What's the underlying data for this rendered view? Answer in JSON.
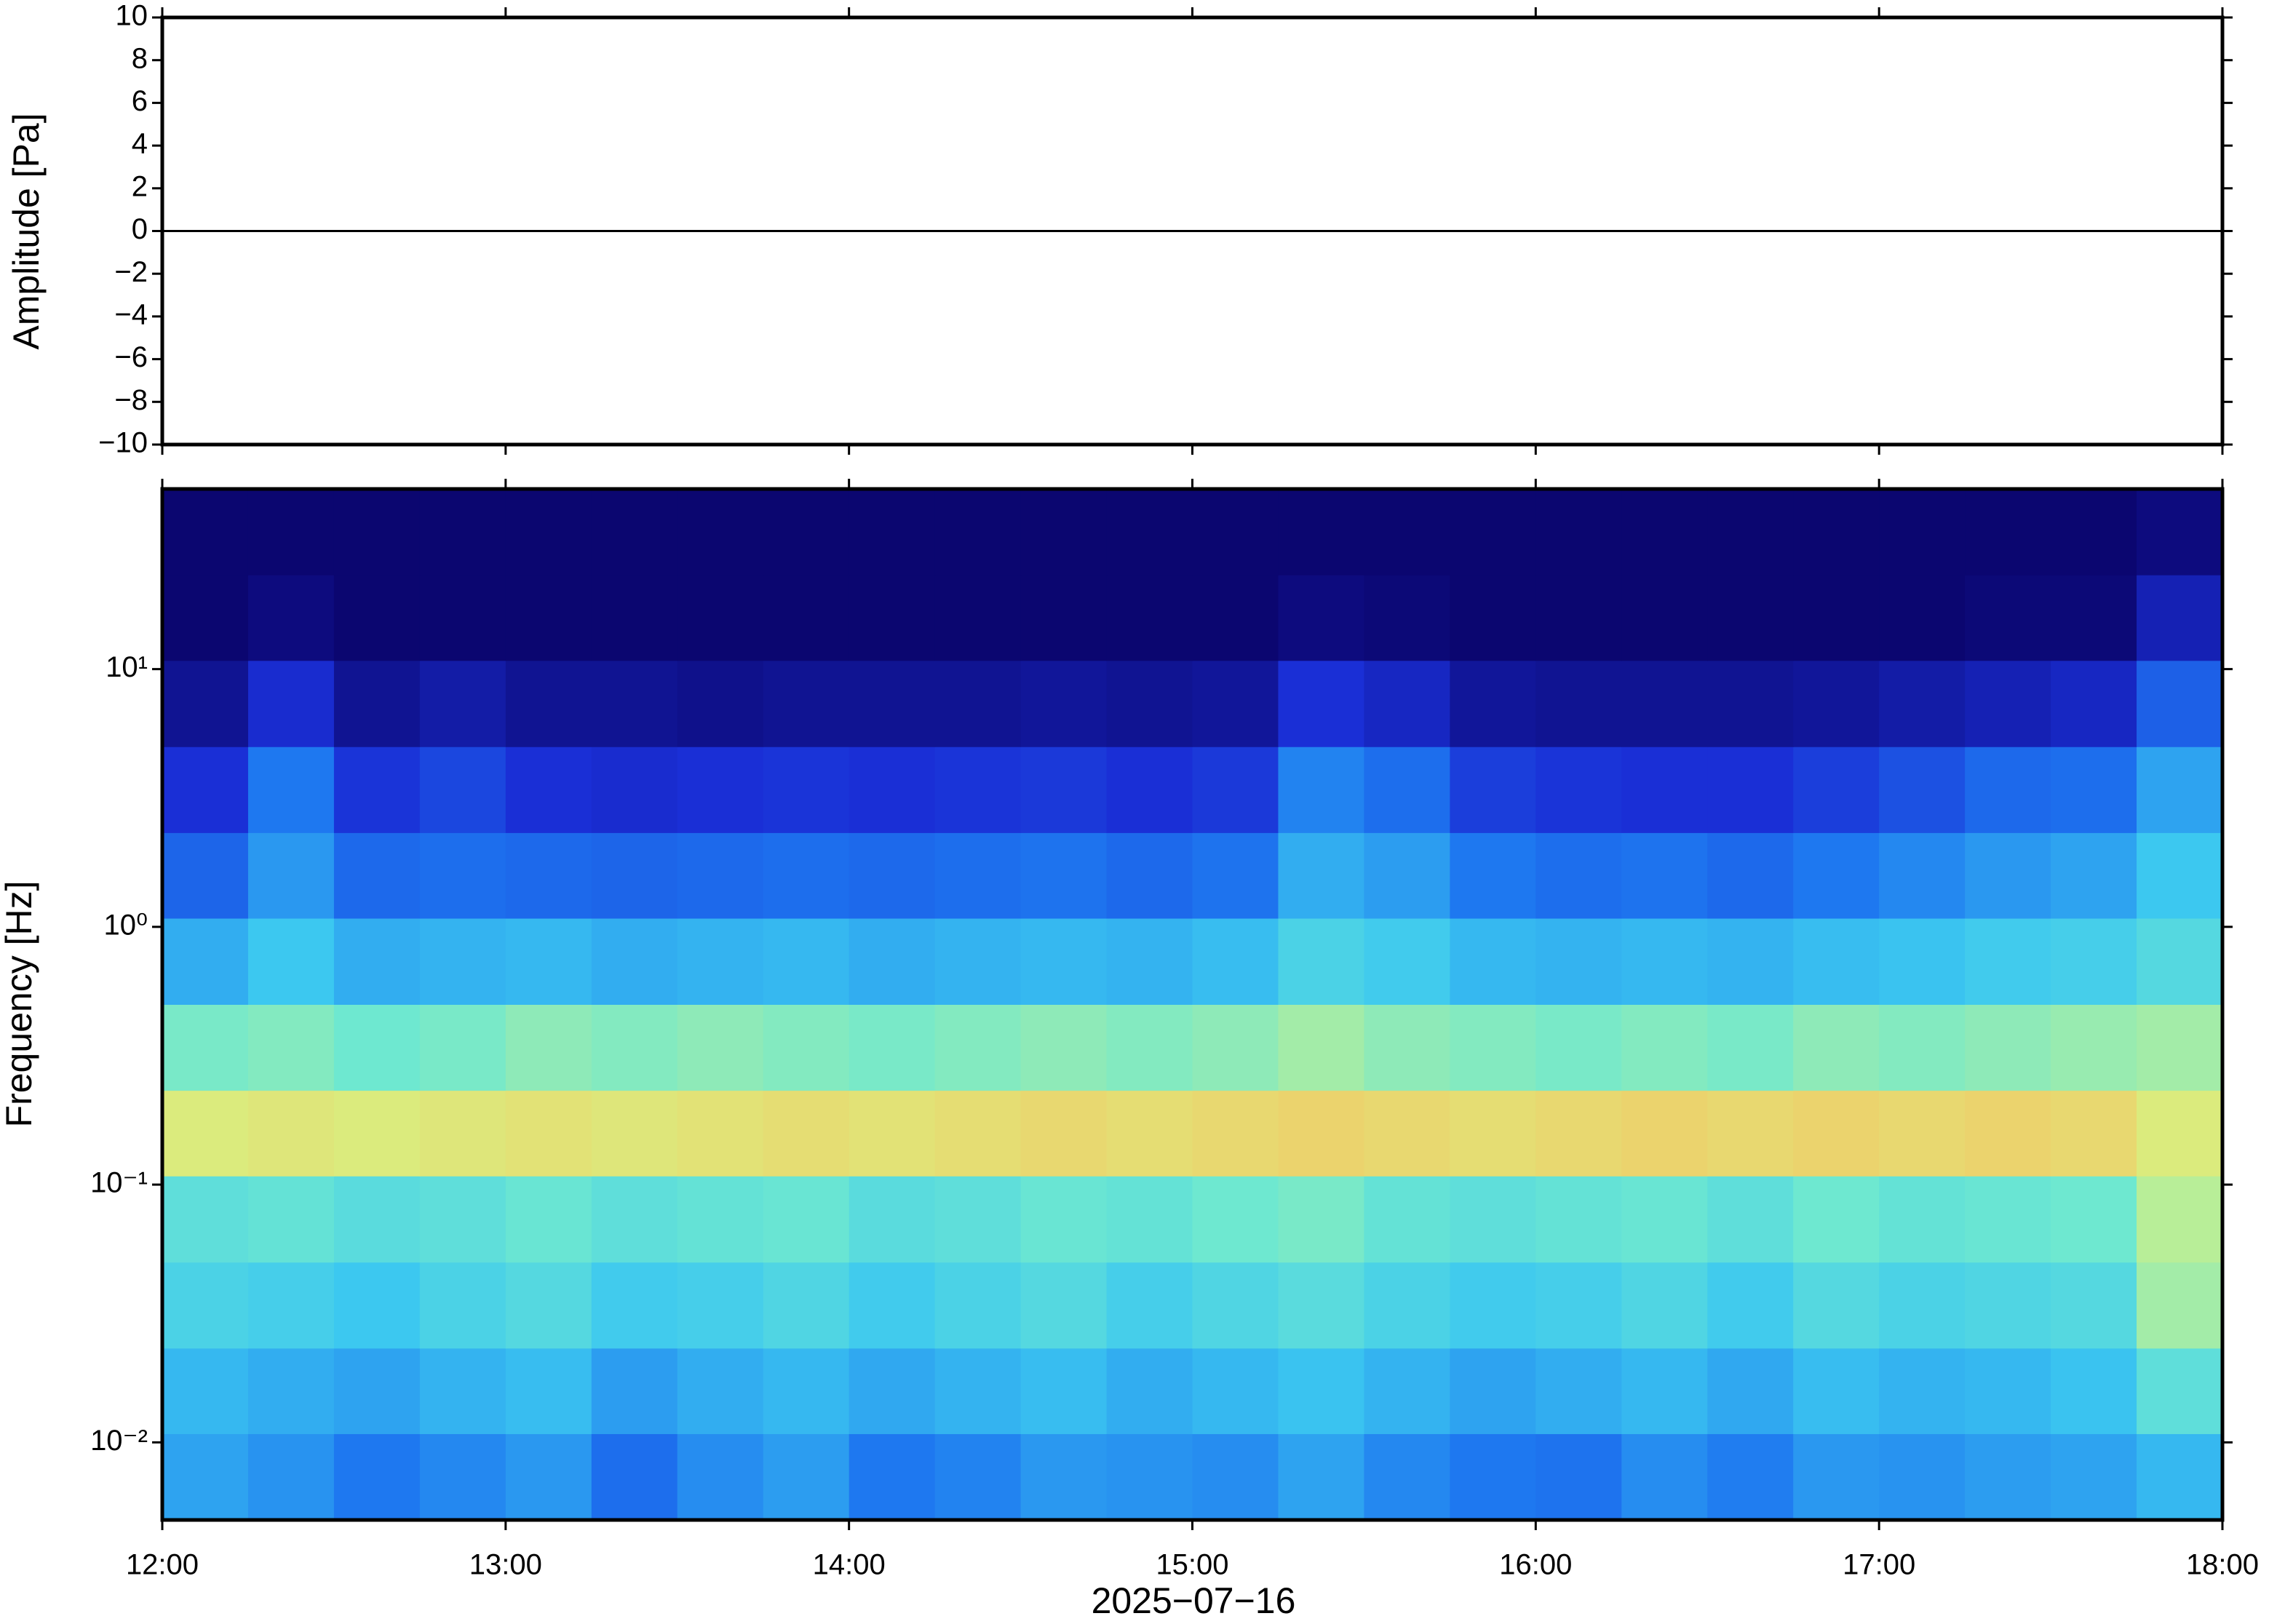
{
  "chart_data": [
    {
      "type": "line",
      "y_label": "Amplitude [Pa]",
      "xlim": [
        12,
        18
      ],
      "xticks": [
        12,
        13,
        14,
        15,
        16,
        17,
        18
      ],
      "ylim": [
        -10,
        10
      ],
      "yticks": [
        {
          "value": -10,
          "label": "−10"
        },
        {
          "value": -8,
          "label": "−8"
        },
        {
          "value": -6,
          "label": "−6"
        },
        {
          "value": -4,
          "label": "−4"
        },
        {
          "value": -2,
          "label": "−2"
        },
        0,
        2,
        4,
        6,
        8,
        10
      ],
      "series": [
        {
          "color": "#000000",
          "x": [
            12,
            12.25,
            12.5,
            12.75,
            13,
            13.25,
            13.5,
            13.75,
            14,
            14.25,
            14.5,
            14.75,
            15,
            15.25,
            15.5,
            15.75,
            16,
            16.25,
            16.5,
            16.75,
            17,
            17.25,
            17.5,
            17.75,
            18
          ],
          "values": [
            0,
            0,
            0,
            0,
            0,
            0,
            0,
            0,
            0,
            0,
            0,
            0,
            0,
            0,
            0,
            0,
            0,
            0,
            0,
            0,
            0,
            0,
            0,
            0,
            0
          ]
        }
      ]
    },
    {
      "type": "heatmap",
      "y_label": "Frequency [Hz]",
      "x_label": "2025−07−16",
      "xlim": [
        12,
        18
      ],
      "xticks": [
        {
          "value": 12,
          "label": "12:00"
        },
        {
          "value": 13,
          "label": "13:00"
        },
        {
          "value": 14,
          "label": "14:00"
        },
        {
          "value": 15,
          "label": "15:00"
        },
        {
          "value": 16,
          "label": "16:00"
        },
        {
          "value": 17,
          "label": "17:00"
        },
        {
          "value": 18,
          "label": "18:00"
        }
      ],
      "log_y": true,
      "ylim": [
        0.005,
        50
      ],
      "yticks": [
        {
          "value": 0.01,
          "label": "10⁻²"
        },
        {
          "value": 0.1,
          "label": "10⁻¹"
        },
        {
          "value": 1,
          "label": "10⁰"
        },
        {
          "value": 10,
          "label": "10¹"
        }
      ],
      "colorscale": [
        [
          0,
          "#0b0670"
        ],
        [
          0.15,
          "#1a2fd6"
        ],
        [
          0.3,
          "#1e78f0"
        ],
        [
          0.45,
          "#3cc8f0"
        ],
        [
          0.55,
          "#6ee8d0"
        ],
        [
          0.65,
          "#d8f080"
        ],
        [
          0.75,
          "#f8c060"
        ],
        [
          1,
          "#e04020"
        ]
      ],
      "x": [
        12,
        12.25,
        12.5,
        12.75,
        13,
        13.25,
        13.5,
        13.75,
        14,
        14.25,
        14.5,
        14.75,
        15,
        15.25,
        15.5,
        15.75,
        16,
        16.25,
        16.5,
        16.75,
        17,
        17.25,
        17.5,
        17.75
      ],
      "y": [
        0.005,
        0.0108,
        0.0232,
        0.05,
        0.108,
        0.232,
        0.5,
        1.08,
        2.32,
        5,
        10.8,
        23.2
      ],
      "z": [
        [
          0.38,
          0.35,
          0.3,
          0.33,
          0.36,
          0.28,
          0.34,
          0.37,
          0.3,
          0.32,
          0.36,
          0.35,
          0.34,
          0.38,
          0.33,
          0.3,
          0.29,
          0.34,
          0.31,
          0.36,
          0.35,
          0.37,
          0.38,
          0.42
        ],
        [
          0.42,
          0.4,
          0.38,
          0.41,
          0.43,
          0.37,
          0.4,
          0.42,
          0.39,
          0.41,
          0.43,
          0.4,
          0.42,
          0.44,
          0.41,
          0.38,
          0.4,
          0.42,
          0.39,
          0.43,
          0.41,
          0.42,
          0.44,
          0.52
        ],
        [
          0.48,
          0.47,
          0.45,
          0.48,
          0.5,
          0.46,
          0.47,
          0.49,
          0.46,
          0.48,
          0.5,
          0.47,
          0.49,
          0.51,
          0.48,
          0.46,
          0.47,
          0.49,
          0.46,
          0.5,
          0.48,
          0.49,
          0.5,
          0.6
        ],
        [
          0.52,
          0.53,
          0.51,
          0.52,
          0.54,
          0.52,
          0.53,
          0.54,
          0.51,
          0.52,
          0.54,
          0.53,
          0.55,
          0.56,
          0.53,
          0.52,
          0.53,
          0.54,
          0.52,
          0.55,
          0.53,
          0.54,
          0.55,
          0.62
        ],
        [
          0.66,
          0.67,
          0.66,
          0.67,
          0.68,
          0.67,
          0.68,
          0.69,
          0.68,
          0.69,
          0.7,
          0.69,
          0.7,
          0.71,
          0.7,
          0.69,
          0.7,
          0.71,
          0.7,
          0.71,
          0.7,
          0.71,
          0.7,
          0.66
        ],
        [
          0.56,
          0.57,
          0.55,
          0.56,
          0.58,
          0.57,
          0.58,
          0.57,
          0.56,
          0.57,
          0.58,
          0.57,
          0.58,
          0.6,
          0.58,
          0.57,
          0.56,
          0.57,
          0.56,
          0.58,
          0.57,
          0.58,
          0.59,
          0.6
        ],
        [
          0.4,
          0.45,
          0.4,
          0.41,
          0.42,
          0.4,
          0.41,
          0.42,
          0.4,
          0.41,
          0.42,
          0.41,
          0.43,
          0.48,
          0.46,
          0.42,
          0.41,
          0.42,
          0.41,
          0.43,
          0.44,
          0.46,
          0.47,
          0.5
        ],
        [
          0.26,
          0.36,
          0.27,
          0.28,
          0.27,
          0.26,
          0.27,
          0.28,
          0.27,
          0.28,
          0.29,
          0.27,
          0.29,
          0.4,
          0.37,
          0.3,
          0.28,
          0.29,
          0.27,
          0.3,
          0.33,
          0.36,
          0.38,
          0.45
        ],
        [
          0.15,
          0.3,
          0.16,
          0.2,
          0.15,
          0.14,
          0.15,
          0.16,
          0.15,
          0.16,
          0.17,
          0.15,
          0.17,
          0.32,
          0.28,
          0.18,
          0.16,
          0.15,
          0.15,
          0.18,
          0.22,
          0.27,
          0.28,
          0.38
        ],
        [
          0.05,
          0.14,
          0.05,
          0.08,
          0.05,
          0.05,
          0.04,
          0.05,
          0.05,
          0.05,
          0.06,
          0.05,
          0.06,
          0.15,
          0.12,
          0.06,
          0.05,
          0.05,
          0.05,
          0.06,
          0.08,
          0.1,
          0.12,
          0.25
        ],
        [
          0,
          0.02,
          0,
          0,
          0,
          0,
          0,
          0,
          0,
          0,
          0,
          0,
          0,
          0.02,
          0.01,
          0,
          0,
          0,
          0,
          0,
          0,
          0.01,
          0.01,
          0.1
        ],
        [
          0,
          0,
          0,
          0,
          0,
          0,
          0,
          0,
          0,
          0,
          0,
          0,
          0,
          0,
          0,
          0,
          0,
          0,
          0,
          0,
          0,
          0,
          0,
          0.02
        ]
      ]
    }
  ]
}
